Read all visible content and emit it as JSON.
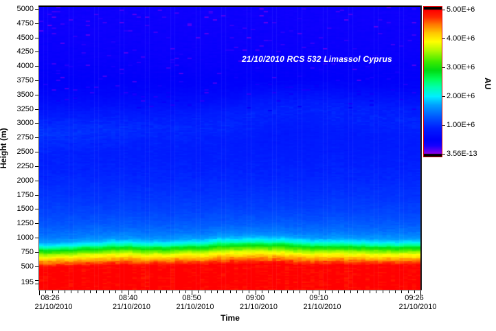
{
  "annotation": {
    "text": "21/10/2010 RCS 532 Limassol Cyprus",
    "color": "#ffffff"
  },
  "chart_data": {
    "type": "heatmap",
    "title_annotation": "21/10/2010 RCS 532 Limassol Cyprus",
    "x_axis": {
      "label": "Time",
      "start_minutes": 0,
      "end_minutes": 60,
      "minor_tick_minutes": 1,
      "ticks": [
        {
          "time": "08:26",
          "date": "21/10/2010",
          "minutes": 0
        },
        {
          "time": "08:40",
          "date": "21/10/2010",
          "minutes": 14
        },
        {
          "time": "08:50",
          "date": "21/10/2010",
          "minutes": 24
        },
        {
          "time": "09:00",
          "date": "21/10/2010",
          "minutes": 34
        },
        {
          "time": "09:10",
          "date": "21/10/2010",
          "minutes": 44
        },
        {
          "time": "09:26",
          "date": "21/10/2010",
          "minutes": 60
        }
      ]
    },
    "y_axis": {
      "label": "Height (m)",
      "min_m": 195,
      "max_m": 5000,
      "tick_interval_m": 250,
      "bottom_label": "195",
      "labeled_ticks": [
        "5000",
        "4750",
        "4500",
        "4250",
        "4000",
        "3750",
        "3500",
        "3250",
        "3000",
        "2750",
        "2500",
        "2250",
        "2000",
        "1750",
        "1500",
        "1250",
        "1000",
        "750",
        "500",
        "195"
      ]
    },
    "colorbar": {
      "label": "AU",
      "value_range": [
        0,
        5000000
      ],
      "border_color": "#e00000",
      "ticks": [
        {
          "label": "5.00E+6",
          "value": 5000000
        },
        {
          "label": "4.00E+6",
          "value": 4000000
        },
        {
          "label": "3.00E+6",
          "value": 3000000
        },
        {
          "label": "2.00E+6",
          "value": 2000000
        },
        {
          "label": "1.00E+6",
          "value": 1000000
        },
        {
          "label": "3.56E-13",
          "value": 0
        }
      ]
    },
    "signal_profile_breakpoints_m_au": [
      [
        0,
        5000000
      ],
      [
        480,
        5000000
      ],
      [
        540,
        4620000
      ],
      [
        600,
        4250000
      ],
      [
        660,
        3850000
      ],
      [
        710,
        3450000
      ],
      [
        755,
        3050000
      ],
      [
        795,
        2650000
      ],
      [
        830,
        2250000
      ],
      [
        870,
        1950000
      ],
      [
        920,
        1680000
      ],
      [
        1000,
        1500000
      ],
      [
        1100,
        1380000
      ],
      [
        1250,
        1260000
      ],
      [
        1450,
        1150000
      ],
      [
        1700,
        1050000
      ],
      [
        2000,
        960000
      ],
      [
        2300,
        900000
      ],
      [
        2600,
        850000
      ],
      [
        2900,
        800000
      ],
      [
        3200,
        700000
      ],
      [
        3500,
        580000
      ],
      [
        3800,
        480000
      ],
      [
        4100,
        420000
      ],
      [
        4500,
        380000
      ],
      [
        5000,
        360000
      ]
    ],
    "boundary_layer_top_m": {
      "minutes": [
        0,
        6,
        10,
        14,
        18,
        22,
        26,
        30,
        34,
        38,
        42,
        46,
        50,
        54,
        60
      ],
      "height_m": [
        805,
        830,
        855,
        860,
        850,
        855,
        880,
        905,
        910,
        895,
        880,
        870,
        865,
        860,
        855
      ],
      "reference_m": 810
    },
    "elevated_layer": {
      "minutes": [
        0,
        8,
        16,
        24,
        30,
        36,
        42,
        48,
        54,
        60
      ],
      "center_m": [
        2870,
        2920,
        2960,
        3000,
        3080,
        3280,
        3300,
        3250,
        3200,
        3120
      ],
      "amplitude_au": [
        220000,
        200000,
        160000,
        160000,
        180000,
        220000,
        240000,
        220000,
        200000,
        200000
      ],
      "sigma_m": 230
    },
    "colormap_stops": [
      [
        0.0,
        150,
        0,
        230
      ],
      [
        0.03,
        80,
        0,
        245
      ],
      [
        0.06,
        20,
        0,
        255
      ],
      [
        0.1,
        0,
        0,
        250
      ],
      [
        0.18,
        0,
        30,
        255
      ],
      [
        0.26,
        0,
        90,
        255
      ],
      [
        0.34,
        0,
        160,
        255
      ],
      [
        0.4,
        0,
        240,
        255
      ],
      [
        0.46,
        0,
        255,
        180
      ],
      [
        0.52,
        0,
        255,
        90
      ],
      [
        0.58,
        0,
        220,
        20
      ],
      [
        0.64,
        60,
        235,
        0
      ],
      [
        0.72,
        180,
        250,
        0
      ],
      [
        0.78,
        255,
        255,
        0
      ],
      [
        0.84,
        255,
        200,
        0
      ],
      [
        0.9,
        255,
        120,
        0
      ],
      [
        0.95,
        255,
        40,
        0
      ],
      [
        1.0,
        255,
        0,
        0
      ]
    ],
    "noise_seed": 42
  }
}
